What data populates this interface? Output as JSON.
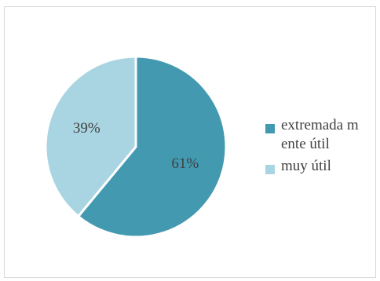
{
  "chart_data": {
    "type": "pie",
    "slices": [
      {
        "label": "extremadamente útil",
        "legend_label": "extremada mente útil",
        "value": 61,
        "display": "61%",
        "color": "#4299B0"
      },
      {
        "label": "muy útil",
        "legend_label": "muy útil",
        "value": 39,
        "display": "39%",
        "color": "#A8D5E1"
      }
    ],
    "legend_position": "right",
    "title": ""
  }
}
